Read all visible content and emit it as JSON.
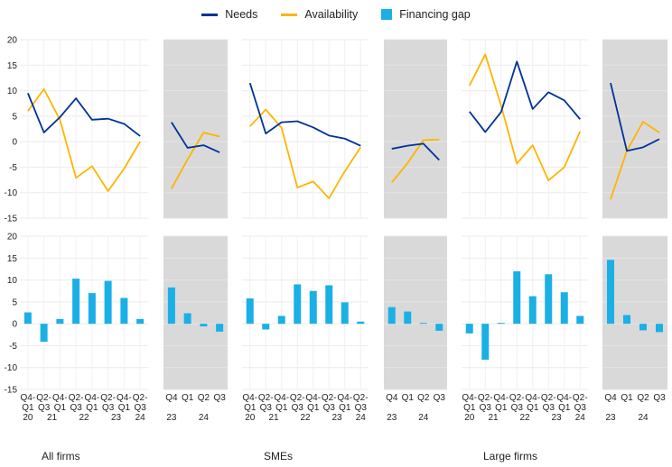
{
  "legend": [
    {
      "name": "Needs",
      "color": "#003299"
    },
    {
      "name": "Availability",
      "color": "#ffb400"
    },
    {
      "name": "Financing gap",
      "color": "#1ab0e6"
    }
  ],
  "chart_data": {
    "type": "line+bar",
    "legend_position": "top",
    "y_axis": {
      "range": [
        -15,
        20
      ],
      "ticks": [
        20,
        15,
        10,
        5,
        0,
        -5,
        -10,
        -15
      ]
    },
    "grid": true,
    "groups": [
      {
        "label": "All firms",
        "main": {
          "x_top": [
            "Q4-",
            "Q2-",
            "Q4-",
            "Q2-",
            "Q4-",
            "Q2-",
            "Q4-",
            "Q2-"
          ],
          "x_mid": [
            "Q1",
            "Q3",
            "Q1",
            "Q3",
            "Q1",
            "Q3",
            "Q1",
            "Q3"
          ],
          "x_year": [
            {
              "text": "20",
              "i": 0
            },
            {
              "text": "21",
              "i": 1.5
            },
            {
              "text": "22",
              "i": 3.5
            },
            {
              "text": "23",
              "i": 5.5
            },
            {
              "text": "24",
              "i": 7
            }
          ],
          "needs": [
            9.5,
            1.8,
            4.8,
            8.5,
            4.3,
            4.5,
            3.5,
            1.1
          ],
          "availability": [
            6.0,
            10.3,
            4.3,
            -7.1,
            -4.8,
            -9.7,
            -5.3,
            0.0
          ],
          "gap": [
            2.6,
            -4.1,
            1.1,
            10.3,
            7.0,
            9.8,
            5.9,
            1.1
          ]
        },
        "recent": {
          "x_quarters": [
            "Q4",
            "Q1",
            "Q2",
            "Q3"
          ],
          "x_year": [
            {
              "text": "23",
              "i": 0
            },
            {
              "text": "24",
              "i": 2
            }
          ],
          "needs": [
            3.8,
            -1.2,
            -0.7,
            -2.1
          ],
          "availability": [
            -9.2,
            -3.5,
            1.8,
            1.0
          ],
          "gap": [
            8.3,
            2.4,
            -0.6,
            -1.8
          ]
        }
      },
      {
        "label": "SMEs",
        "main": {
          "x_top": [
            "Q4-",
            "Q2-",
            "Q4-",
            "Q2-",
            "Q4-",
            "Q2-",
            "Q4-",
            "Q2-"
          ],
          "x_mid": [
            "Q1",
            "Q3",
            "Q1",
            "Q3",
            "Q1",
            "Q3",
            "Q1",
            "Q3"
          ],
          "x_year": [
            {
              "text": "20",
              "i": 0
            },
            {
              "text": "21",
              "i": 1.5
            },
            {
              "text": "22",
              "i": 3.5
            },
            {
              "text": "23",
              "i": 5.5
            },
            {
              "text": "24",
              "i": 7
            }
          ],
          "needs": [
            11.5,
            1.6,
            3.8,
            4.0,
            2.8,
            1.2,
            0.6,
            -0.8
          ],
          "availability": [
            3.0,
            6.3,
            2.7,
            -9.0,
            -7.8,
            -11.1,
            -5.8,
            -1.1
          ],
          "gap": [
            5.8,
            -1.3,
            1.8,
            9.0,
            7.5,
            8.8,
            4.9,
            0.5
          ]
        },
        "recent": {
          "x_quarters": [
            "Q4",
            "Q1",
            "Q2",
            "Q3"
          ],
          "x_year": [
            {
              "text": "23",
              "i": 0
            },
            {
              "text": "24",
              "i": 2
            }
          ],
          "needs": [
            -1.4,
            -0.8,
            -0.4,
            -3.6
          ],
          "availability": [
            -8.0,
            -4.2,
            0.3,
            0.4
          ],
          "gap": [
            3.8,
            2.8,
            0.2,
            -1.6
          ]
        }
      },
      {
        "label": "Large firms",
        "main": {
          "x_top": [
            "Q4-",
            "Q2-",
            "Q4-",
            "Q2-",
            "Q4-",
            "Q2-",
            "Q4-",
            "Q2-"
          ],
          "x_mid": [
            "Q1",
            "Q3",
            "Q1",
            "Q3",
            "Q1",
            "Q3",
            "Q1",
            "Q3"
          ],
          "x_year": [
            {
              "text": "20",
              "i": 0
            },
            {
              "text": "21",
              "i": 1.5
            },
            {
              "text": "22",
              "i": 3.5
            },
            {
              "text": "23",
              "i": 5.5
            },
            {
              "text": "24",
              "i": 7
            }
          ],
          "needs": [
            5.9,
            1.9,
            5.8,
            15.7,
            6.4,
            9.7,
            8.1,
            4.4
          ],
          "availability": [
            11.0,
            17.1,
            7.1,
            -4.3,
            -0.7,
            -7.6,
            -5.0,
            2.0
          ],
          "gap": [
            -2.2,
            -8.2,
            0.2,
            12.0,
            6.3,
            11.3,
            7.2,
            1.8
          ]
        },
        "recent": {
          "x_quarters": [
            "Q4",
            "Q1",
            "Q2",
            "Q3"
          ],
          "x_year": [
            {
              "text": "23",
              "i": 0
            },
            {
              "text": "24",
              "i": 2
            }
          ],
          "needs": [
            11.5,
            -1.8,
            -1.1,
            0.5
          ],
          "availability": [
            -11.3,
            -1.8,
            3.9,
            1.8
          ],
          "gap": [
            14.6,
            2.0,
            -1.5,
            -1.9
          ]
        }
      }
    ]
  }
}
